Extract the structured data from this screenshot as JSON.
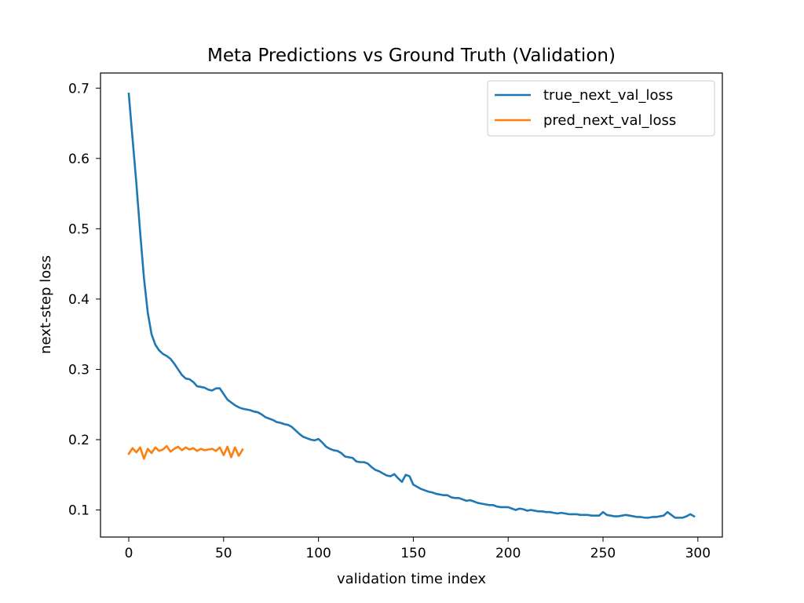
{
  "chart_data": {
    "type": "line",
    "title": "Meta Predictions vs Ground Truth (Validation)",
    "xlabel": "validation time index",
    "ylabel": "next-step loss",
    "xlim": [
      -14.9,
      312.9
    ],
    "ylim": [
      0.0615,
      0.7215
    ],
    "xticks": [
      0,
      50,
      100,
      150,
      200,
      250,
      300
    ],
    "yticks": [
      0.1,
      0.2,
      0.3,
      0.4,
      0.5,
      0.6,
      0.7
    ],
    "xtick_labels": [
      "0",
      "50",
      "100",
      "150",
      "200",
      "250",
      "300"
    ],
    "ytick_labels": [
      "0.1",
      "0.2",
      "0.3",
      "0.4",
      "0.5",
      "0.6",
      "0.7"
    ],
    "grid": false,
    "legend_position": "top-right",
    "series": [
      {
        "name": "true_next_val_loss",
        "color": "#1f77b4",
        "x": [
          0,
          2,
          4,
          6,
          8,
          10,
          12,
          14,
          16,
          18,
          20,
          22,
          24,
          26,
          28,
          30,
          32,
          34,
          36,
          38,
          40,
          42,
          44,
          46,
          48,
          50,
          52,
          54,
          56,
          58,
          60,
          62,
          64,
          66,
          68,
          70,
          72,
          74,
          76,
          78,
          80,
          82,
          84,
          86,
          88,
          90,
          92,
          94,
          96,
          98,
          100,
          102,
          104,
          106,
          108,
          110,
          112,
          114,
          116,
          118,
          120,
          122,
          124,
          126,
          128,
          130,
          132,
          134,
          136,
          138,
          140,
          142,
          144,
          146,
          148,
          150,
          152,
          154,
          156,
          158,
          160,
          162,
          164,
          166,
          168,
          170,
          172,
          174,
          176,
          178,
          180,
          182,
          184,
          186,
          188,
          190,
          192,
          194,
          196,
          198,
          200,
          202,
          204,
          206,
          208,
          210,
          212,
          214,
          216,
          218,
          220,
          222,
          224,
          226,
          228,
          230,
          232,
          234,
          236,
          238,
          240,
          242,
          244,
          246,
          248,
          250,
          252,
          254,
          256,
          258,
          260,
          262,
          264,
          266,
          268,
          270,
          272,
          274,
          276,
          278,
          280,
          282,
          284,
          286,
          288,
          290,
          292,
          294,
          296,
          298
        ],
        "y": [
          0.692,
          0.628,
          0.565,
          0.495,
          0.43,
          0.381,
          0.35,
          0.335,
          0.327,
          0.322,
          0.319,
          0.315,
          0.308,
          0.3,
          0.292,
          0.287,
          0.286,
          0.282,
          0.276,
          0.275,
          0.274,
          0.271,
          0.27,
          0.273,
          0.273,
          0.265,
          0.257,
          0.253,
          0.249,
          0.246,
          0.244,
          0.243,
          0.242,
          0.24,
          0.239,
          0.236,
          0.232,
          0.23,
          0.228,
          0.225,
          0.224,
          0.222,
          0.221,
          0.218,
          0.213,
          0.208,
          0.204,
          0.202,
          0.2,
          0.199,
          0.201,
          0.196,
          0.19,
          0.187,
          0.185,
          0.184,
          0.181,
          0.176,
          0.175,
          0.174,
          0.169,
          0.168,
          0.168,
          0.166,
          0.161,
          0.157,
          0.155,
          0.152,
          0.149,
          0.148,
          0.151,
          0.145,
          0.14,
          0.15,
          0.148,
          0.136,
          0.133,
          0.13,
          0.128,
          0.126,
          0.125,
          0.123,
          0.122,
          0.121,
          0.121,
          0.118,
          0.117,
          0.117,
          0.115,
          0.113,
          0.114,
          0.112,
          0.11,
          0.109,
          0.108,
          0.107,
          0.107,
          0.105,
          0.104,
          0.104,
          0.104,
          0.102,
          0.1,
          0.102,
          0.101,
          0.099,
          0.1,
          0.099,
          0.098,
          0.098,
          0.097,
          0.097,
          0.096,
          0.095,
          0.096,
          0.095,
          0.094,
          0.094,
          0.094,
          0.093,
          0.093,
          0.093,
          0.092,
          0.092,
          0.092,
          0.097,
          0.093,
          0.092,
          0.091,
          0.091,
          0.092,
          0.093,
          0.092,
          0.091,
          0.09,
          0.09,
          0.089,
          0.089,
          0.09,
          0.09,
          0.091,
          0.092,
          0.097,
          0.093,
          0.089,
          0.089,
          0.089,
          0.091,
          0.094,
          0.091
        ]
      },
      {
        "name": "pred_next_val_loss",
        "color": "#ff7f0e",
        "x": [
          0,
          2,
          4,
          6,
          8,
          10,
          12,
          14,
          16,
          18,
          20,
          22,
          24,
          26,
          28,
          30,
          32,
          34,
          36,
          38,
          40,
          42,
          44,
          46,
          48,
          50,
          52,
          54,
          56,
          58,
          60
        ],
        "y": [
          0.18,
          0.188,
          0.182,
          0.189,
          0.173,
          0.187,
          0.181,
          0.189,
          0.184,
          0.186,
          0.191,
          0.183,
          0.187,
          0.19,
          0.185,
          0.189,
          0.186,
          0.188,
          0.184,
          0.187,
          0.185,
          0.186,
          0.187,
          0.184,
          0.189,
          0.178,
          0.19,
          0.175,
          0.189,
          0.177,
          0.186
        ]
      }
    ]
  }
}
